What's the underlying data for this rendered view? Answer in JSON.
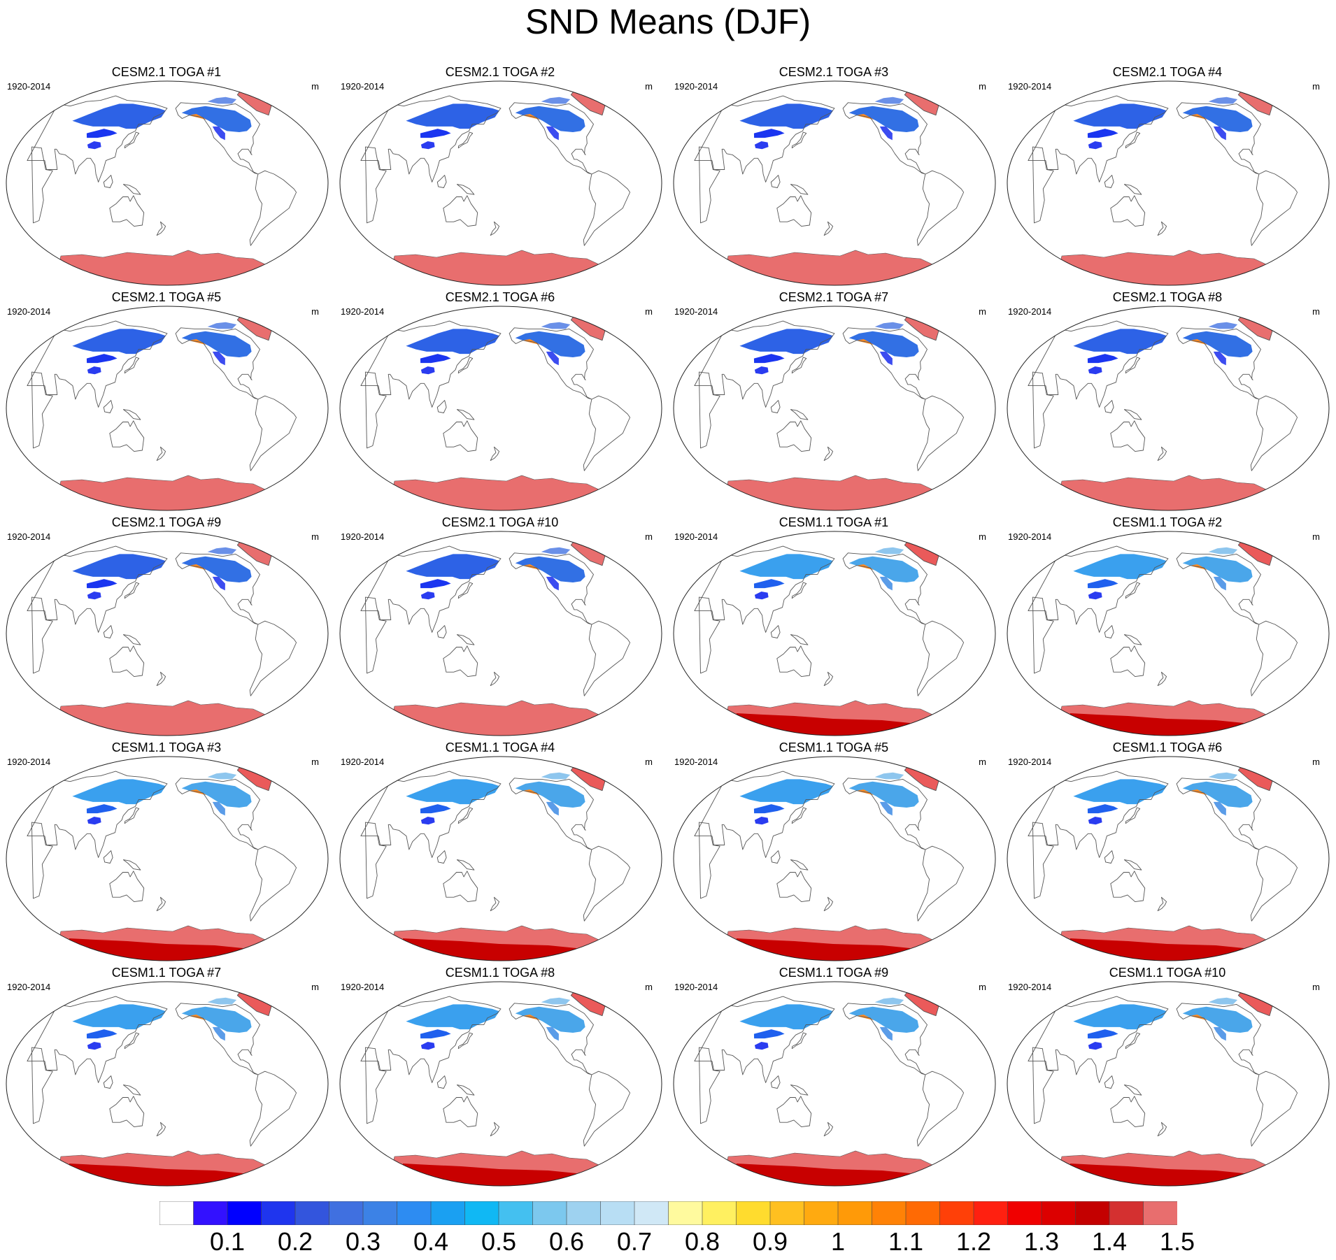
{
  "title": "SND Means (DJF)",
  "panels": [
    {
      "title": "CESM2.1 TOGA #1",
      "period": "1920-2014",
      "unit": "m"
    },
    {
      "title": "CESM2.1 TOGA #2",
      "period": "1920-2014",
      "unit": "m"
    },
    {
      "title": "CESM2.1 TOGA #3",
      "period": "1920-2014",
      "unit": "m"
    },
    {
      "title": "CESM2.1 TOGA #4",
      "period": "1920-2014",
      "unit": "m"
    },
    {
      "title": "CESM2.1 TOGA #5",
      "period": "1920-2014",
      "unit": "m"
    },
    {
      "title": "CESM2.1 TOGA #6",
      "period": "1920-2014",
      "unit": "m"
    },
    {
      "title": "CESM2.1 TOGA #7",
      "period": "1920-2014",
      "unit": "m"
    },
    {
      "title": "CESM2.1 TOGA #8",
      "period": "1920-2014",
      "unit": "m"
    },
    {
      "title": "CESM2.1 TOGA #9",
      "period": "1920-2014",
      "unit": "m"
    },
    {
      "title": "CESM2.1 TOGA #10",
      "period": "1920-2014",
      "unit": "m"
    },
    {
      "title": "CESM1.1 TOGA #1",
      "period": "1920-2014",
      "unit": "m"
    },
    {
      "title": "CESM1.1 TOGA #2",
      "period": "1920-2014",
      "unit": "m"
    },
    {
      "title": "CESM1.1 TOGA #3",
      "period": "1920-2014",
      "unit": "m"
    },
    {
      "title": "CESM1.1 TOGA #4",
      "period": "1920-2014",
      "unit": "m"
    },
    {
      "title": "CESM1.1 TOGA #5",
      "period": "1920-2014",
      "unit": "m"
    },
    {
      "title": "CESM1.1 TOGA #6",
      "period": "1920-2014",
      "unit": "m"
    },
    {
      "title": "CESM1.1 TOGA #7",
      "period": "1920-2014",
      "unit": "m"
    },
    {
      "title": "CESM1.1 TOGA #8",
      "period": "1920-2014",
      "unit": "m"
    },
    {
      "title": "CESM1.1 TOGA #9",
      "period": "1920-2014",
      "unit": "m"
    },
    {
      "title": "CESM1.1 TOGA #10",
      "period": "1920-2014",
      "unit": "m"
    }
  ],
  "colorbar": {
    "labels": [
      "0.1",
      "0.2",
      "0.3",
      "0.4",
      "0.5",
      "0.6",
      "0.7",
      "0.8",
      "0.9",
      "1",
      "1.1",
      "1.2",
      "1.3",
      "1.4",
      "1.5"
    ],
    "colors": [
      "#ffffff",
      "#3311ff",
      "#0000ff",
      "#1f35ee",
      "#3355dd",
      "#4070e0",
      "#3c82e6",
      "#2d8cf2",
      "#1aa0f2",
      "#10b8f4",
      "#44c0f0",
      "#7cc8ee",
      "#9ed2f0",
      "#b8def4",
      "#d0e8f6",
      "#fffa9e",
      "#fff060",
      "#ffdc2e",
      "#ffc020",
      "#ffaa10",
      "#ff9a08",
      "#ff8206",
      "#ff6a04",
      "#ff4008",
      "#ff2010",
      "#f00000",
      "#dc0000",
      "#c40000",
      "#d43030",
      "#e86e6e"
    ]
  }
}
